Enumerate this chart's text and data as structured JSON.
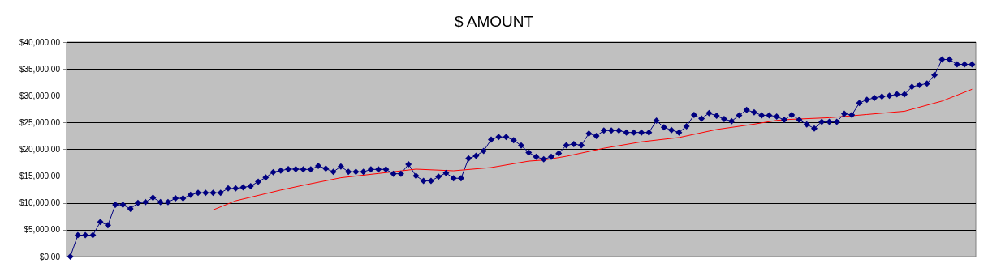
{
  "chart_data": {
    "type": "line",
    "title": "$ AMOUNT",
    "categories": [
      null,
      null,
      null,
      null,
      null,
      null,
      null,
      null,
      null,
      null,
      null,
      null,
      null,
      null,
      null,
      null,
      null,
      null,
      null,
      null,
      null,
      null,
      null,
      null,
      null,
      null,
      null,
      null,
      null,
      null,
      null,
      null,
      null,
      null,
      null,
      null,
      null,
      null,
      null,
      null,
      null,
      null,
      null,
      null,
      null,
      null,
      null,
      null,
      null,
      null,
      null,
      null,
      null,
      null,
      null,
      null,
      null,
      null,
      null,
      null,
      null,
      null,
      null,
      null,
      null,
      null,
      null,
      null,
      null,
      null,
      null,
      null,
      null,
      null,
      null,
      null,
      null,
      null,
      null,
      null,
      null,
      null,
      null,
      null,
      null,
      null,
      null,
      null,
      null,
      null,
      null,
      null,
      null,
      null,
      null,
      null,
      null,
      null,
      null,
      null,
      null,
      null,
      null,
      null,
      null,
      null,
      null,
      null,
      null,
      null,
      null,
      null,
      null,
      null,
      null,
      null,
      null,
      null,
      null,
      null,
      null
    ],
    "series": [
      {
        "color": "#000080",
        "marker": "diamond",
        "values": [
          0,
          4000,
          4000,
          4000,
          6450,
          5850,
          9650,
          9650,
          8900,
          10000,
          10150,
          11000,
          10150,
          10150,
          10850,
          10850,
          11500,
          11900,
          11900,
          11900,
          11900,
          12700,
          12700,
          12900,
          13150,
          13950,
          14750,
          15750,
          16050,
          16300,
          16300,
          16250,
          16250,
          16900,
          16400,
          15800,
          16800,
          15800,
          15800,
          15800,
          16250,
          16250,
          16250,
          15450,
          15450,
          17200,
          15050,
          14100,
          14100,
          14900,
          15600,
          14600,
          14600,
          18300,
          18800,
          19700,
          21800,
          22300,
          22300,
          21700,
          20700,
          19400,
          18600,
          18150,
          18600,
          19250,
          20750,
          21000,
          20750,
          22950,
          22500,
          23500,
          23500,
          23500,
          23150,
          23150,
          23150,
          23150,
          25350,
          24100,
          23600,
          23150,
          24300,
          26400,
          25750,
          26750,
          26250,
          25650,
          25250,
          26350,
          27350,
          26900,
          26350,
          26350,
          26100,
          25500,
          26400,
          25500,
          24650,
          23900,
          25150,
          25150,
          25150,
          26650,
          26400,
          28650,
          29250,
          29600,
          29850,
          30000,
          30250,
          30250,
          31650,
          32000,
          32250,
          33850,
          36750,
          36750,
          35850,
          35850,
          35850
        ]
      },
      {
        "color": "#ff0000",
        "marker": "none",
        "values": [
          null,
          null,
          null,
          null,
          null,
          null,
          null,
          null,
          null,
          null,
          null,
          null,
          null,
          null,
          null,
          null,
          null,
          null,
          null,
          8700,
          null,
          null,
          10400,
          null,
          null,
          11400,
          null,
          null,
          12400,
          null,
          null,
          13300,
          null,
          null,
          null,
          null,
          14700,
          null,
          null,
          null,
          null,
          15500,
          null,
          null,
          null,
          null,
          16300,
          null,
          null,
          null,
          null,
          16000,
          null,
          null,
          null,
          null,
          16600,
          null,
          null,
          null,
          null,
          17800,
          null,
          18000,
          null,
          null,
          18700,
          null,
          null,
          null,
          null,
          20200,
          null,
          null,
          null,
          null,
          21400,
          null,
          null,
          null,
          null,
          22200,
          null,
          null,
          null,
          null,
          23700,
          null,
          null,
          null,
          null,
          24700,
          null,
          null,
          25400,
          null,
          25600,
          null,
          null,
          null,
          null,
          25900,
          null,
          null,
          null,
          null,
          26500,
          null,
          null,
          null,
          null,
          27100,
          null,
          null,
          null,
          null,
          29000,
          null,
          null,
          null,
          31200
        ]
      }
    ],
    "ylim": [
      0,
      40000
    ],
    "yticks": [
      {
        "value": 0,
        "label": "$0.00"
      },
      {
        "value": 5000,
        "label": "$5,000.00"
      },
      {
        "value": 10000,
        "label": "$10,000.00"
      },
      {
        "value": 15000,
        "label": "$15,000.00"
      },
      {
        "value": 20000,
        "label": "$20,000.00"
      },
      {
        "value": 25000,
        "label": "$25,000.00"
      },
      {
        "value": 30000,
        "label": "$30,000.00"
      },
      {
        "value": 35000,
        "label": "$35,000.00"
      },
      {
        "value": 40000,
        "label": "$40,000.00"
      }
    ],
    "grid": "y",
    "line_style": "solid"
  }
}
